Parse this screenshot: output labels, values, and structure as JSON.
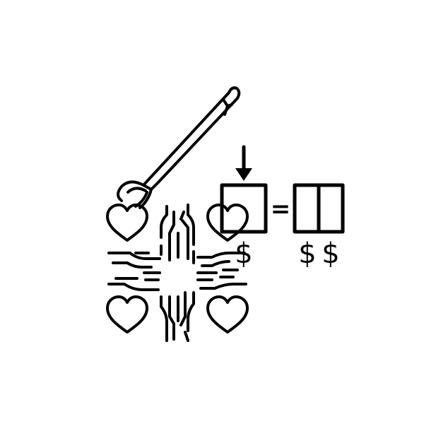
{
  "symbols": {
    "dollar_single": "$",
    "dollar_left": "$",
    "dollar_right": "$",
    "equals": "="
  },
  "icons": [
    "reacher-grabber-icon",
    "heart-icon",
    "cross-fingerprint-icon",
    "down-arrow-icon",
    "single-box-icon",
    "double-box-icon"
  ],
  "colors": {
    "foreground": "#000000",
    "background": "#ffffff"
  }
}
